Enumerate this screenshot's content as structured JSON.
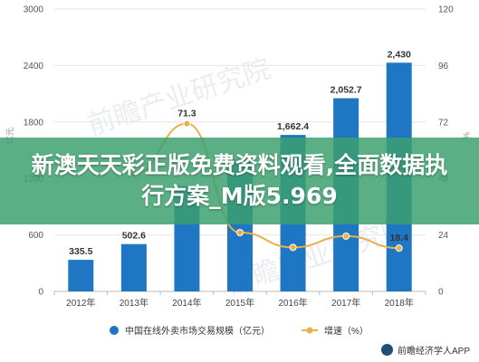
{
  "watermark_text": "前瞻产业研究院",
  "banner": {
    "title": "新澳天天彩正版免费资料观看,全面数据执行方案_M版5.969"
  },
  "source": {
    "label": "前瞻经济学人APP"
  },
  "chart_data": {
    "type": "bar",
    "categories": [
      "2012年",
      "2013年",
      "2014年",
      "2015年",
      "2016年",
      "2017年",
      "2018年"
    ],
    "series": [
      {
        "name": "中国在线外卖市场交易规模（亿元）",
        "type": "bar",
        "axis": "left",
        "values": [
          335.5,
          502.6,
          1120,
          1400,
          1662.4,
          2052.7,
          2430
        ],
        "data_labels": [
          "335.5",
          "502.6",
          "",
          "",
          "1,662.4",
          "2,052.7",
          "2,430"
        ],
        "color": "#1f77c4"
      },
      {
        "name": "增速（%）",
        "type": "line",
        "axis": "right",
        "values": [
          null,
          49.8,
          71.3,
          25.0,
          18.7,
          23.5,
          18.4
        ],
        "data_labels": [
          "",
          "",
          "71.3",
          "",
          "",
          "",
          "18.4"
        ],
        "color": "#e7b04a"
      }
    ],
    "y_left": {
      "min": 0,
      "max": 3000,
      "ticks": [
        "0",
        "600",
        "1200",
        "1800",
        "2400",
        "3000"
      ],
      "label": "亿元"
    },
    "y_right": {
      "min": 0,
      "max": 120,
      "ticks": [
        "0",
        "24",
        "48",
        "72",
        "96",
        "120"
      ],
      "label": "%"
    },
    "grid": true,
    "legend_position": "bottom"
  }
}
